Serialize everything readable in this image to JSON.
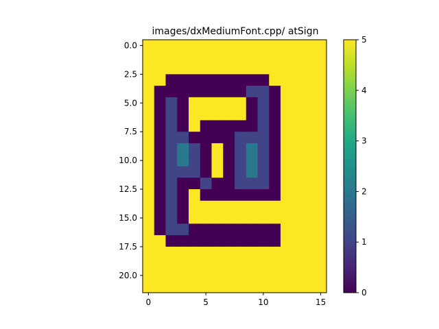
{
  "chart_data": {
    "type": "heatmap",
    "title": "images/dxMediumFont.cpp/ atSign",
    "colormap": "viridis",
    "vmin": 0,
    "vmax": 5,
    "xlim": [
      -0.5,
      15.5
    ],
    "ylim": [
      21.5,
      -0.5
    ],
    "xticks": [
      0,
      5,
      10,
      15
    ],
    "xtick_labels": [
      "0",
      "5",
      "10",
      "15"
    ],
    "yticks": [
      0,
      2.5,
      5,
      7.5,
      10,
      12.5,
      15,
      17.5,
      20
    ],
    "ytick_labels": [
      "0.0",
      "2.5",
      "5.0",
      "7.5",
      "10.0",
      "12.5",
      "15.0",
      "17.5",
      "20.0"
    ],
    "colorbar_ticks": [
      0,
      1,
      2,
      3,
      4,
      5
    ],
    "colorbar_tick_labels": [
      "0",
      "1",
      "2",
      "3",
      "4",
      "5"
    ],
    "grid": [
      [
        5,
        5,
        5,
        5,
        5,
        5,
        5,
        5,
        5,
        5,
        5,
        5,
        5,
        5,
        5,
        5
      ],
      [
        5,
        5,
        5,
        5,
        5,
        5,
        5,
        5,
        5,
        5,
        5,
        5,
        5,
        5,
        5,
        5
      ],
      [
        5,
        5,
        5,
        5,
        5,
        5,
        5,
        5,
        5,
        5,
        5,
        5,
        5,
        5,
        5,
        5
      ],
      [
        5,
        5,
        0,
        0,
        0,
        0,
        0,
        0,
        0,
        0,
        0,
        5,
        5,
        5,
        5,
        5
      ],
      [
        5,
        0,
        0,
        0,
        0,
        0,
        0,
        0,
        0,
        1,
        1,
        0,
        5,
        5,
        5,
        5
      ],
      [
        5,
        0,
        1,
        0,
        5,
        5,
        5,
        5,
        5,
        0,
        1,
        0,
        5,
        5,
        5,
        5
      ],
      [
        5,
        0,
        1,
        0,
        5,
        5,
        5,
        5,
        5,
        0,
        1,
        0,
        5,
        5,
        5,
        5
      ],
      [
        5,
        0,
        1,
        0,
        5,
        0,
        0,
        0,
        0,
        0,
        1,
        0,
        5,
        5,
        5,
        5
      ],
      [
        5,
        0,
        1,
        1,
        0,
        0,
        0,
        0,
        1,
        1,
        1,
        0,
        5,
        5,
        5,
        5
      ],
      [
        5,
        0,
        1,
        2,
        1,
        0,
        5,
        0,
        1,
        2,
        1,
        0,
        5,
        5,
        5,
        5
      ],
      [
        5,
        0,
        1,
        2,
        1,
        0,
        5,
        0,
        1,
        2,
        1,
        0,
        5,
        5,
        5,
        5
      ],
      [
        5,
        0,
        1,
        1,
        1,
        0,
        5,
        0,
        1,
        2,
        1,
        0,
        5,
        5,
        5,
        5
      ],
      [
        5,
        0,
        1,
        0,
        0,
        1,
        0,
        0,
        1,
        1,
        1,
        0,
        5,
        5,
        5,
        5
      ],
      [
        5,
        0,
        1,
        0,
        5,
        0,
        0,
        0,
        0,
        0,
        0,
        0,
        5,
        5,
        5,
        5
      ],
      [
        5,
        0,
        1,
        0,
        5,
        5,
        5,
        5,
        5,
        5,
        5,
        5,
        5,
        5,
        5,
        5
      ],
      [
        5,
        0,
        1,
        0,
        5,
        5,
        5,
        5,
        5,
        5,
        5,
        5,
        5,
        5,
        5,
        5
      ],
      [
        5,
        0,
        1,
        1,
        0,
        0,
        0,
        0,
        0,
        0,
        0,
        0,
        5,
        5,
        5,
        5
      ],
      [
        5,
        5,
        0,
        0,
        0,
        0,
        0,
        0,
        0,
        0,
        0,
        0,
        5,
        5,
        5,
        5
      ],
      [
        5,
        5,
        5,
        5,
        5,
        5,
        5,
        5,
        5,
        5,
        5,
        5,
        5,
        5,
        5,
        5
      ],
      [
        5,
        5,
        5,
        5,
        5,
        5,
        5,
        5,
        5,
        5,
        5,
        5,
        5,
        5,
        5,
        5
      ],
      [
        5,
        5,
        5,
        5,
        5,
        5,
        5,
        5,
        5,
        5,
        5,
        5,
        5,
        5,
        5,
        5
      ],
      [
        5,
        5,
        5,
        5,
        5,
        5,
        5,
        5,
        5,
        5,
        5,
        5,
        5,
        5,
        5,
        5
      ]
    ]
  }
}
